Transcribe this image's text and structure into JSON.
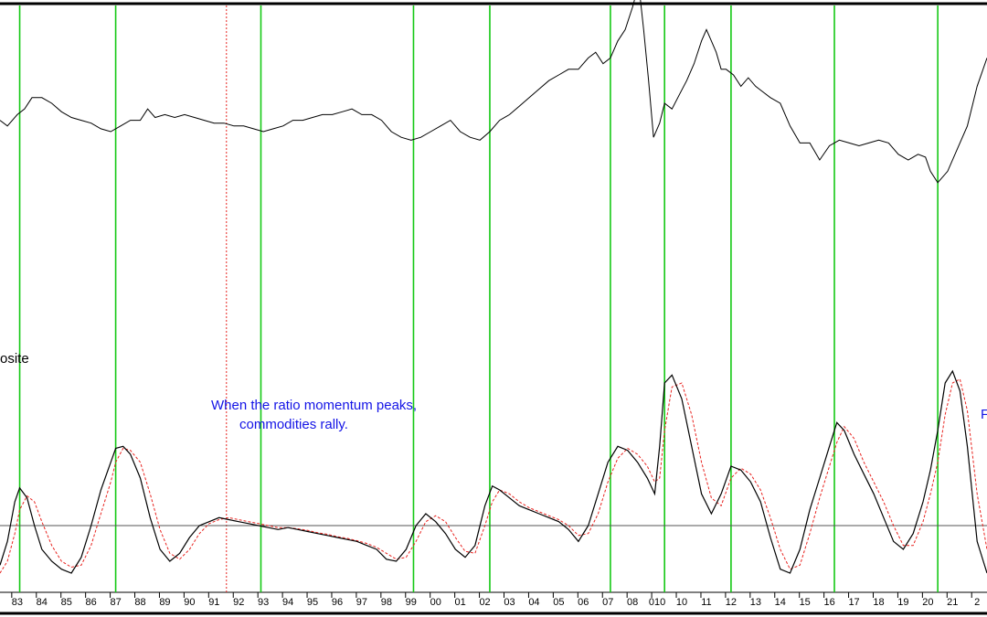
{
  "chart_data": {
    "type": "line",
    "colors": {
      "price": "#000000",
      "momentum": "#000000",
      "signal": "#e8231f",
      "cycle_marker": "#14c814",
      "reference_marker": "#e8231f",
      "annotation": "#1414e6",
      "zero_line": "#555555"
    },
    "x_axis": {
      "ticks": [
        "83",
        "84",
        "85",
        "86",
        "87",
        "88",
        "89",
        "90",
        "91",
        "92",
        "93",
        "94",
        "95",
        "96",
        "97",
        "98",
        "99",
        "00",
        "01",
        "02",
        "03",
        "04",
        "05",
        "06",
        "07",
        "08",
        "010",
        "10",
        "11",
        "12",
        "13",
        "14",
        "15",
        "16",
        "17",
        "18",
        "19",
        "20",
        "21",
        "2"
      ],
      "tick_years": [
        1983,
        1984,
        1985,
        1986,
        1987,
        1988,
        1989,
        1990,
        1991,
        1992,
        1993,
        1994,
        1995,
        1996,
        1997,
        1998,
        1999,
        2000,
        2001,
        2002,
        2003,
        2004,
        2005,
        2006,
        2007,
        2008,
        2009,
        2010,
        2011,
        2012,
        2013,
        2014,
        2015,
        2016,
        2017,
        2018,
        2019,
        2020,
        2021,
        2022
      ],
      "xlim": [
        1982.3,
        2022.4
      ]
    },
    "cycle_markers_years": [
      1983.1,
      1987.0,
      1992.9,
      1999.1,
      2002.2,
      2007.1,
      2009.3,
      2012.0,
      2016.2,
      2020.4
    ],
    "reference_marker_year": 1991.5,
    "upper_panel": {
      "label": "osite",
      "ylim": [
        0,
        100
      ],
      "series": [
        {
          "x": [
            1982.3,
            1982.6,
            1983.0,
            1983.3,
            1983.6,
            1984.0,
            1984.4,
            1984.8,
            1985.2,
            1985.6,
            1986.0,
            1986.4,
            1986.8,
            1987.2,
            1987.6,
            1988.0,
            1988.3,
            1988.6,
            1989.0,
            1989.4,
            1989.8,
            1990.2,
            1990.6,
            1991.0,
            1991.4,
            1991.8,
            1992.2,
            1992.6,
            1993.0,
            1993.4,
            1993.8,
            1994.2,
            1994.6,
            1995.0,
            1995.4,
            1995.8,
            1996.2,
            1996.6,
            1997.0,
            1997.4,
            1997.8,
            1998.2,
            1998.6,
            1999.0,
            1999.4,
            1999.8,
            2000.2,
            2000.6,
            2001.0,
            2001.4,
            2001.8,
            2002.2,
            2002.6,
            2003.0,
            2003.4,
            2003.8,
            2004.2,
            2004.6,
            2005.0,
            2005.4,
            2005.8,
            2006.2,
            2006.5,
            2006.8,
            2007.1,
            2007.4,
            2007.7,
            2008.0,
            2008.25,
            2008.45,
            2008.65,
            2008.85,
            2009.1,
            2009.3,
            2009.6,
            2009.9,
            2010.2,
            2010.5,
            2010.8,
            2011.0,
            2011.2,
            2011.4,
            2011.6,
            2011.8,
            2012.1,
            2012.4,
            2012.7,
            2013.0,
            2013.3,
            2013.6,
            2014.0,
            2014.4,
            2014.8,
            2015.2,
            2015.6,
            2016.0,
            2016.4,
            2016.8,
            2017.2,
            2017.6,
            2018.0,
            2018.4,
            2018.8,
            2019.2,
            2019.6,
            2019.9,
            2020.1,
            2020.4,
            2020.8,
            2021.2,
            2021.6,
            2022.0,
            2022.4
          ],
          "y": [
            64,
            62,
            66,
            68,
            72,
            72,
            70,
            67,
            65,
            64,
            63,
            61,
            60,
            62,
            64,
            64,
            68,
            65,
            66,
            65,
            66,
            65,
            64,
            63,
            63,
            62,
            62,
            61,
            60,
            61,
            62,
            64,
            64,
            65,
            66,
            66,
            67,
            68,
            66,
            66,
            64,
            60,
            58,
            57,
            58,
            60,
            62,
            64,
            60,
            58,
            57,
            60,
            64,
            66,
            69,
            72,
            75,
            78,
            80,
            82,
            82,
            86,
            88,
            84,
            86,
            92,
            96,
            104,
            112,
            96,
            78,
            58,
            63,
            70,
            68,
            73,
            78,
            84,
            92,
            96,
            92,
            88,
            82,
            82,
            80,
            76,
            79,
            76,
            74,
            72,
            70,
            62,
            56,
            56,
            50,
            55,
            57,
            56,
            55,
            56,
            57,
            56,
            52,
            50,
            52,
            51,
            46,
            42,
            46,
            54,
            62,
            76,
            86
          ]
        }
      ]
    },
    "lower_panel": {
      "zero_value": 0,
      "ylim": [
        -1.5,
        4.5
      ],
      "series": [
        {
          "x": [
            1982.3,
            1982.6,
            1982.9,
            1983.1,
            1983.4,
            1983.7,
            1984.0,
            1984.4,
            1984.8,
            1985.2,
            1985.6,
            1986.0,
            1986.4,
            1986.8,
            1987.0,
            1987.3,
            1987.6,
            1988.0,
            1988.4,
            1988.8,
            1989.2,
            1989.6,
            1990.0,
            1990.4,
            1990.8,
            1991.2,
            1991.6,
            1992.0,
            1992.4,
            1992.8,
            1993.2,
            1993.6,
            1994.0,
            1994.4,
            1994.8,
            1995.2,
            1995.6,
            1996.0,
            1996.4,
            1996.8,
            1997.2,
            1997.6,
            1998.0,
            1998.4,
            1998.8,
            1999.2,
            1999.6,
            2000.0,
            2000.4,
            2000.8,
            2001.2,
            2001.6,
            2002.0,
            2002.3,
            2002.6,
            2003.0,
            2003.4,
            2003.8,
            2004.2,
            2004.6,
            2005.0,
            2005.4,
            2005.8,
            2006.2,
            2006.6,
            2007.0,
            2007.4,
            2007.8,
            2008.2,
            2008.6,
            2008.9,
            2009.1,
            2009.3,
            2009.6,
            2010.0,
            2010.4,
            2010.8,
            2011.2,
            2011.6,
            2012.0,
            2012.4,
            2012.8,
            2013.2,
            2013.6,
            2014.0,
            2014.4,
            2014.8,
            2015.2,
            2015.6,
            2016.0,
            2016.3,
            2016.6,
            2017.0,
            2017.4,
            2017.8,
            2018.2,
            2018.6,
            2019.0,
            2019.4,
            2019.8,
            2020.1,
            2020.4,
            2020.7,
            2021.0,
            2021.3,
            2021.6,
            2022.0,
            2022.4
          ],
          "y": [
            -1.0,
            -0.4,
            0.6,
            0.95,
            0.7,
            0.0,
            -0.6,
            -0.9,
            -1.1,
            -1.2,
            -0.8,
            0.0,
            0.9,
            1.6,
            1.95,
            2.0,
            1.8,
            1.2,
            0.2,
            -0.6,
            -0.9,
            -0.7,
            -0.3,
            0.0,
            0.1,
            0.2,
            0.15,
            0.1,
            0.05,
            0.0,
            -0.05,
            -0.1,
            -0.05,
            -0.1,
            -0.15,
            -0.2,
            -0.25,
            -0.3,
            -0.35,
            -0.4,
            -0.5,
            -0.6,
            -0.85,
            -0.9,
            -0.6,
            0.0,
            0.3,
            0.1,
            -0.2,
            -0.6,
            -0.8,
            -0.5,
            0.5,
            1.0,
            0.9,
            0.7,
            0.5,
            0.4,
            0.3,
            0.2,
            0.1,
            -0.1,
            -0.4,
            0.0,
            0.8,
            1.6,
            2.0,
            1.9,
            1.6,
            1.2,
            0.8,
            2.0,
            3.6,
            3.8,
            3.2,
            2.0,
            0.8,
            0.3,
            0.8,
            1.5,
            1.4,
            1.1,
            0.6,
            -0.3,
            -1.1,
            -1.2,
            -0.6,
            0.4,
            1.2,
            2.0,
            2.6,
            2.4,
            1.8,
            1.3,
            0.8,
            0.2,
            -0.4,
            -0.6,
            -0.2,
            0.6,
            1.4,
            2.4,
            3.6,
            3.9,
            3.4,
            2.0,
            -0.4,
            -1.2
          ]
        },
        {
          "x": [
            1982.3,
            1982.6,
            1982.9,
            1983.1,
            1983.4,
            1983.7,
            1984.0,
            1984.4,
            1984.8,
            1985.2,
            1985.6,
            1986.0,
            1986.4,
            1986.8,
            1987.0,
            1987.3,
            1987.6,
            1988.0,
            1988.4,
            1988.8,
            1989.2,
            1989.6,
            1990.0,
            1990.4,
            1990.8,
            1991.2,
            1991.6,
            1992.0,
            1992.4,
            1992.8,
            1993.2,
            1993.6,
            1994.0,
            1994.4,
            1994.8,
            1995.2,
            1995.6,
            1996.0,
            1996.4,
            1996.8,
            1997.2,
            1997.6,
            1998.0,
            1998.4,
            1998.8,
            1999.2,
            1999.6,
            2000.0,
            2000.4,
            2000.8,
            2001.2,
            2001.6,
            2002.0,
            2002.3,
            2002.6,
            2003.0,
            2003.4,
            2003.8,
            2004.2,
            2004.6,
            2005.0,
            2005.4,
            2005.8,
            2006.2,
            2006.6,
            2007.0,
            2007.4,
            2007.8,
            2008.2,
            2008.6,
            2008.9,
            2009.1,
            2009.3,
            2009.6,
            2010.0,
            2010.4,
            2010.8,
            2011.2,
            2011.6,
            2012.0,
            2012.4,
            2012.8,
            2013.2,
            2013.6,
            2014.0,
            2014.4,
            2014.8,
            2015.2,
            2015.6,
            2016.0,
            2016.3,
            2016.6,
            2017.0,
            2017.4,
            2017.8,
            2018.2,
            2018.6,
            2019.0,
            2019.4,
            2019.8,
            2020.1,
            2020.4,
            2020.7,
            2021.0,
            2021.3,
            2021.6,
            2022.0,
            2022.4
          ],
          "y": [
            -1.2,
            -0.9,
            -0.2,
            0.4,
            0.75,
            0.6,
            0.1,
            -0.5,
            -0.9,
            -1.05,
            -1.0,
            -0.5,
            0.3,
            1.1,
            1.6,
            1.95,
            1.9,
            1.6,
            0.8,
            -0.1,
            -0.7,
            -0.85,
            -0.6,
            -0.2,
            0.05,
            0.15,
            0.2,
            0.15,
            0.1,
            0.05,
            0.0,
            -0.05,
            -0.05,
            -0.08,
            -0.12,
            -0.18,
            -0.22,
            -0.28,
            -0.32,
            -0.38,
            -0.45,
            -0.55,
            -0.7,
            -0.85,
            -0.8,
            -0.4,
            0.1,
            0.25,
            0.1,
            -0.3,
            -0.65,
            -0.7,
            0.0,
            0.6,
            0.9,
            0.8,
            0.6,
            0.45,
            0.35,
            0.25,
            0.15,
            0.0,
            -0.25,
            -0.2,
            0.3,
            1.1,
            1.7,
            1.95,
            1.8,
            1.5,
            1.1,
            1.2,
            2.4,
            3.5,
            3.6,
            2.8,
            1.6,
            0.7,
            0.5,
            1.2,
            1.45,
            1.3,
            0.9,
            0.2,
            -0.6,
            -1.1,
            -1.0,
            -0.2,
            0.7,
            1.5,
            2.1,
            2.5,
            2.2,
            1.6,
            1.1,
            0.6,
            0.0,
            -0.5,
            -0.5,
            0.1,
            0.8,
            1.6,
            2.8,
            3.6,
            3.7,
            2.9,
            0.8,
            -0.6
          ]
        }
      ]
    },
    "annotations": [
      {
        "lines": [
          "When the ratio momentum peaks,",
          "commodities rally."
        ]
      },
      {
        "lines": [
          "F"
        ]
      }
    ]
  }
}
